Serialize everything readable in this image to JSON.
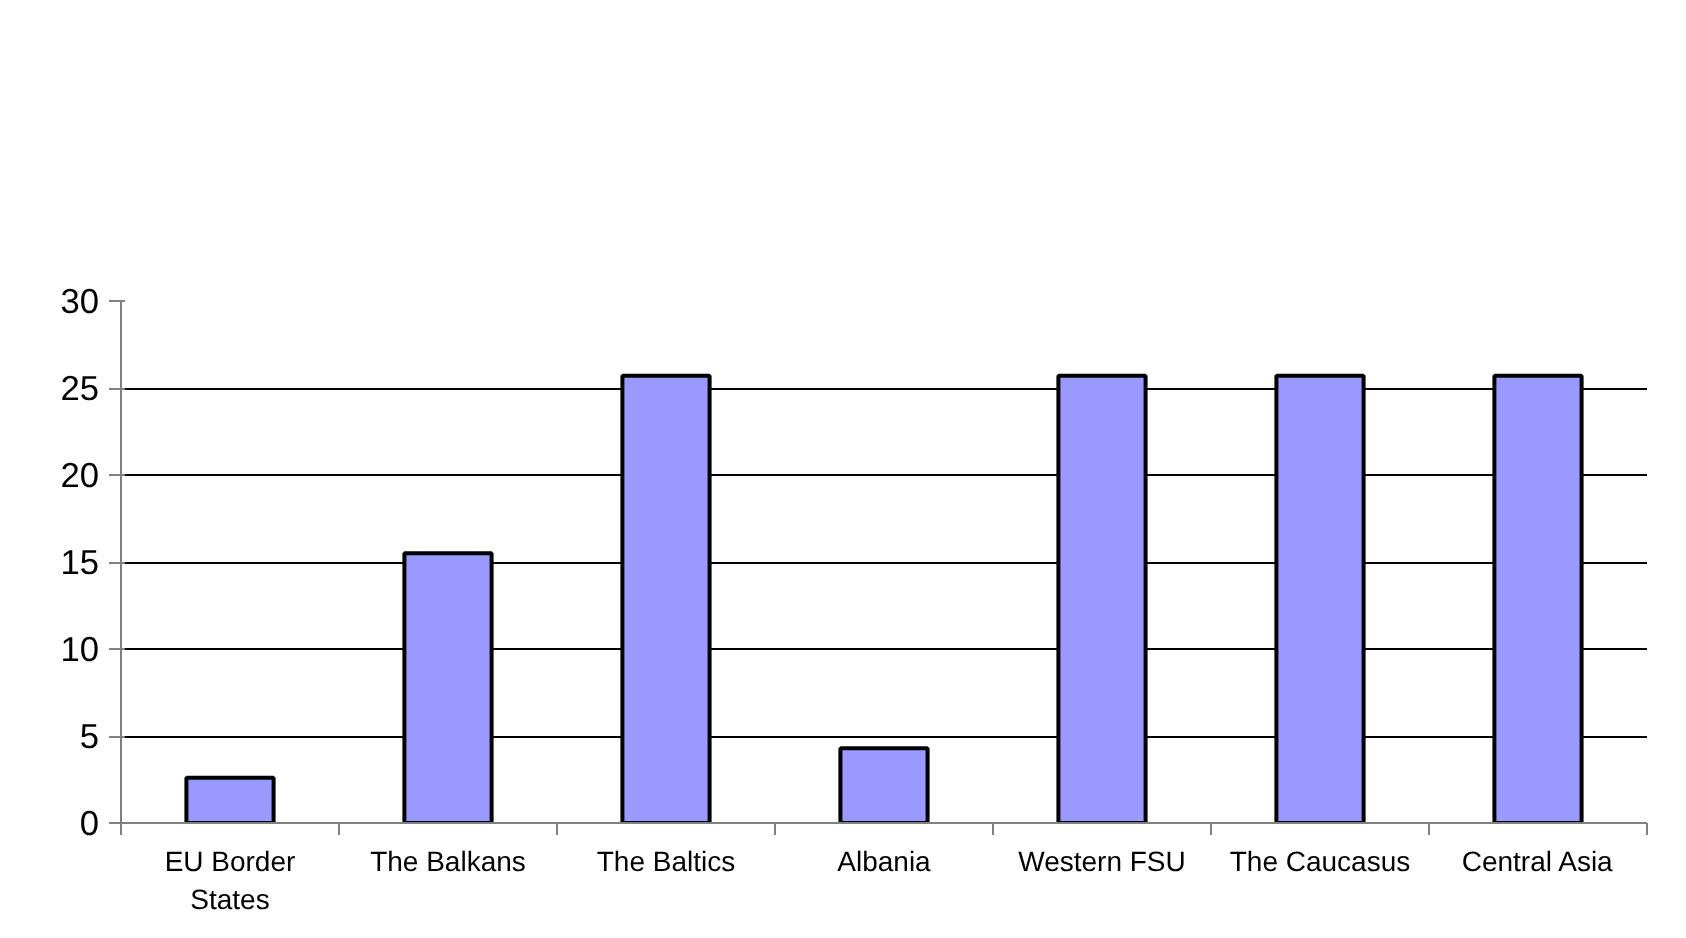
{
  "chart_data": {
    "type": "bar",
    "categories": [
      "EU Border States",
      "The Balkans",
      "The Baltics",
      "Albania",
      "Western FSU",
      "The Caucasus",
      "Central Asia"
    ],
    "values": [
      2.6,
      15.5,
      25.7,
      4.3,
      25.7,
      25.7,
      25.7
    ],
    "color": "#9999ff",
    "ylim": [
      0,
      30
    ],
    "yticks": [
      0,
      5,
      10,
      15,
      20,
      25,
      30
    ],
    "grid": "y"
  }
}
